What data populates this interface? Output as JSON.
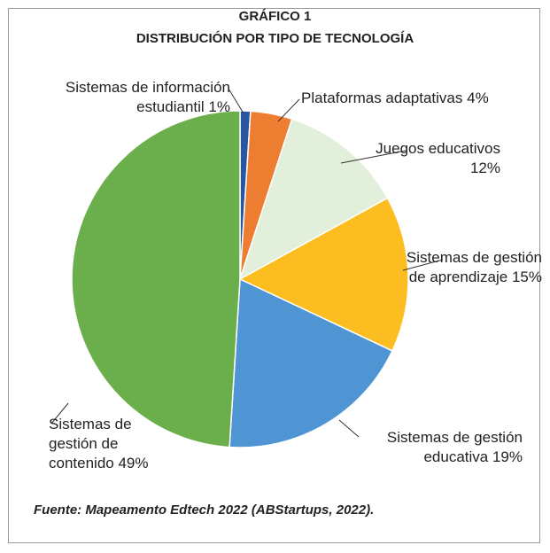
{
  "chart_data": {
    "type": "pie",
    "title": "GRÁFICO 1",
    "subtitle": "DISTRIBUCIÓN POR TIPO DE TECNOLOGÍA",
    "categories": [
      "Sistemas de información estudiantil",
      "Plataformas adaptativas",
      "Juegos educativos",
      "Sistemas de gestión de aprendizaje",
      "Sistemas de gestión educativa",
      "Sistemas de gestión de contenido"
    ],
    "values": [
      1,
      4,
      12,
      15,
      19,
      49
    ],
    "value_labels": [
      "1%",
      "4%",
      "12%",
      "15%",
      "19%",
      "49%"
    ],
    "colors": [
      "#2a55a0",
      "#ed7d31",
      "#e2efda",
      "#fbbd1f",
      "#4f95d4",
      "#6aaf4b"
    ],
    "source": "Fuente: Mapeamento Edtech 2022 (ABStartups, 2022)."
  }
}
